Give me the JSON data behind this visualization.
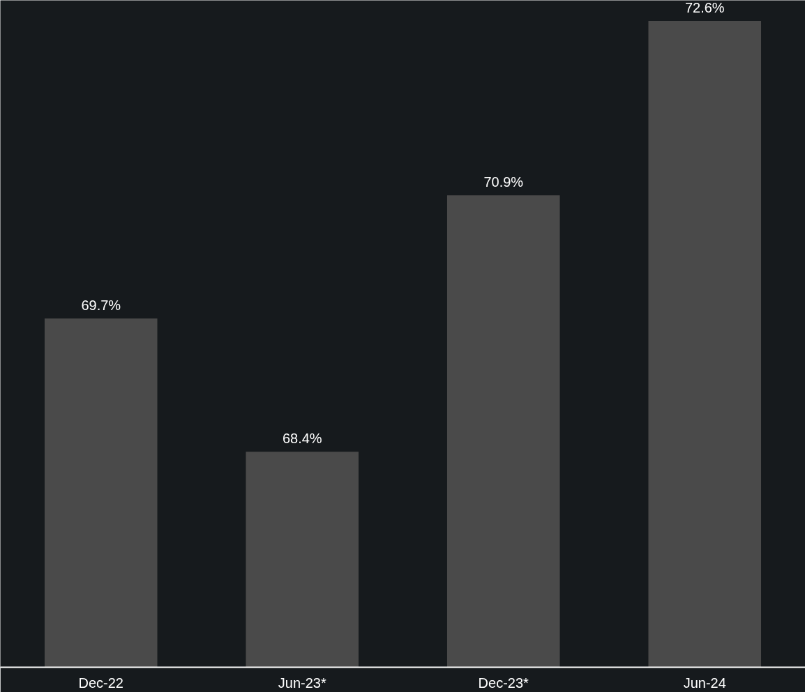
{
  "chart_data": {
    "type": "bar",
    "categories": [
      "Dec-22",
      "Jun-23*",
      "Dec-23*",
      "Jun-24"
    ],
    "values": [
      69.7,
      68.4,
      70.9,
      72.6
    ],
    "value_labels": [
      "69.7%",
      "68.4%",
      "70.9%",
      "72.6%"
    ],
    "color": "#4a4a4a",
    "ylim": [
      66.3,
      72.8
    ],
    "tick_labels": "x",
    "grid": false
  }
}
